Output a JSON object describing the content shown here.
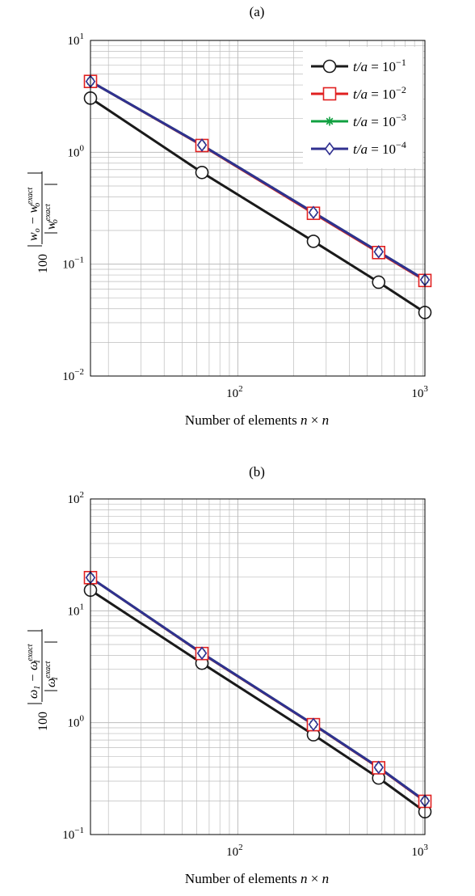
{
  "chart_data": [
    {
      "type": "line",
      "title": "(a)",
      "xlabel": "Number of elements n × n",
      "ylabel": "100 |w_o − w_o^exact| / |w_o^exact|",
      "xscale": "log",
      "yscale": "log",
      "xlim": [
        16,
        1024
      ],
      "ylim": [
        0.01,
        10
      ],
      "grid": true,
      "legend_position": "top-right",
      "x": [
        16,
        64,
        256,
        576,
        1024
      ],
      "xticks": [
        {
          "base": "10",
          "exp": "2",
          "value": 100
        },
        {
          "base": "10",
          "exp": "3",
          "value": 1000
        }
      ],
      "yticks": [
        {
          "base": "10",
          "exp": "−2",
          "value": 0.01
        },
        {
          "base": "10",
          "exp": "−1",
          "value": 0.1
        },
        {
          "base": "10",
          "exp": "0",
          "value": 1
        },
        {
          "base": "10",
          "exp": "1",
          "value": 10
        }
      ],
      "series": [
        {
          "name": "t/a = 10^−1",
          "label_main": "t/a = 10",
          "label_exp": "−1",
          "color": "#1a1a1a",
          "marker": "circle",
          "values": [
            3.05,
            0.66,
            0.16,
            0.069,
            0.037
          ]
        },
        {
          "name": "t/a = 10^−2",
          "label_main": "t/a = 10",
          "label_exp": "−2",
          "color": "#e02020",
          "marker": "square",
          "values": [
            4.3,
            1.15,
            0.285,
            0.127,
            0.0715
          ]
        },
        {
          "name": "t/a = 10^−3",
          "label_main": "t/a = 10",
          "label_exp": "−3",
          "color": "#10a040",
          "marker": "star",
          "values": [
            4.3,
            1.16,
            0.29,
            0.129,
            0.0725
          ]
        },
        {
          "name": "t/a = 10^−4",
          "label_main": "t/a = 10",
          "label_exp": "−4",
          "color": "#303090",
          "marker": "diamond",
          "values": [
            4.3,
            1.16,
            0.29,
            0.129,
            0.0725
          ]
        }
      ]
    },
    {
      "type": "line",
      "title": "(b)",
      "xlabel": "Number of elements n × n",
      "ylabel": "100 |ω_1 − ω_1^exact| / |ω_1^exact|",
      "xscale": "log",
      "yscale": "log",
      "xlim": [
        16,
        1024
      ],
      "ylim": [
        0.1,
        100
      ],
      "grid": true,
      "x": [
        16,
        64,
        256,
        576,
        1024
      ],
      "xticks": [
        {
          "base": "10",
          "exp": "2",
          "value": 100
        },
        {
          "base": "10",
          "exp": "3",
          "value": 1000
        }
      ],
      "yticks": [
        {
          "base": "10",
          "exp": "−1",
          "value": 0.1
        },
        {
          "base": "10",
          "exp": "0",
          "value": 1
        },
        {
          "base": "10",
          "exp": "1",
          "value": 10
        },
        {
          "base": "10",
          "exp": "2",
          "value": 100
        }
      ],
      "series": [
        {
          "name": "t/a = 10^−1",
          "color": "#1a1a1a",
          "marker": "circle",
          "values": [
            15.3,
            3.4,
            0.78,
            0.32,
            0.16
          ]
        },
        {
          "name": "t/a = 10^−2",
          "color": "#e02020",
          "marker": "square",
          "values": [
            19.8,
            4.15,
            0.96,
            0.395,
            0.198
          ]
        },
        {
          "name": "t/a = 10^−3",
          "color": "#10a040",
          "marker": "star",
          "values": [
            19.8,
            4.18,
            0.965,
            0.398,
            0.2
          ]
        },
        {
          "name": "t/a = 10^−4",
          "color": "#303090",
          "marker": "diamond",
          "values": [
            19.8,
            4.18,
            0.965,
            0.398,
            0.2
          ]
        }
      ]
    }
  ]
}
